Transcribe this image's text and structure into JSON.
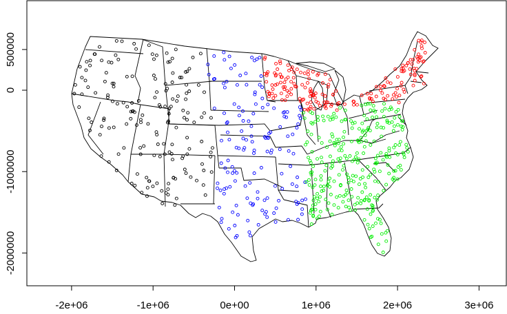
{
  "chart_data": {
    "type": "scatter",
    "title": "",
    "xlabel": "",
    "ylabel": "",
    "xlim": [
      -2600000,
      3300000
    ],
    "ylim": [
      -2400000,
      1000000
    ],
    "x_ticks": [
      {
        "value": -2000000,
        "label": "-2e+06"
      },
      {
        "value": -1000000,
        "label": "-1e+06"
      },
      {
        "value": 0,
        "label": "0e+00"
      },
      {
        "value": 1000000,
        "label": "1e+06"
      },
      {
        "value": 2000000,
        "label": "2e+06"
      },
      {
        "value": 3000000,
        "label": "3e+06"
      }
    ],
    "y_ticks": [
      {
        "value": 500000,
        "label": "500000"
      },
      {
        "value": 0,
        "label": "0"
      },
      {
        "value": -1000000,
        "label": "-1000000"
      },
      {
        "value": -2000000,
        "label": "-2000000"
      }
    ],
    "background": "map of the contiguous United States state boundaries",
    "series": [
      {
        "color": "#000000",
        "region": "west",
        "count": 170
      },
      {
        "color": "#0000ff",
        "region": "central",
        "count": 150
      },
      {
        "color": "#ff0000",
        "region": "north-east",
        "count": 190
      },
      {
        "color": "#00ee00",
        "region": "south-east",
        "count": 300
      }
    ],
    "grid": false,
    "legend": "none"
  }
}
